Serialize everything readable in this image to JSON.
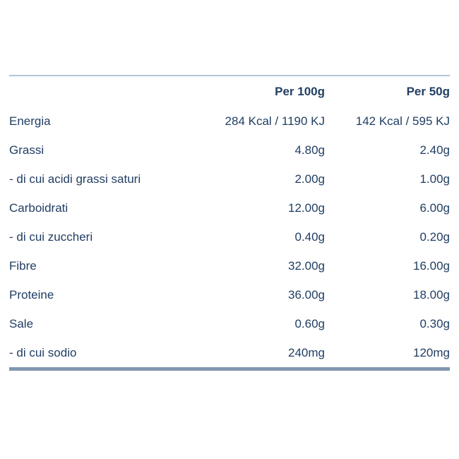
{
  "colors": {
    "background": "#ffffff",
    "text": "#213e63",
    "top_border": "#b3c5d7",
    "bottom_border": "#8197ae"
  },
  "table": {
    "header": {
      "col_100g": "Per 100g",
      "col_50g": "Per 50g"
    },
    "rows": [
      {
        "label": "Energia",
        "per_100g": "284 Kcal / 1190 KJ",
        "per_50g": "142 Kcal / 595 KJ"
      },
      {
        "label": "Grassi",
        "per_100g": "4.80g",
        "per_50g": "2.40g"
      },
      {
        "label": "- di cui acidi grassi saturi",
        "per_100g": "2.00g",
        "per_50g": "1.00g"
      },
      {
        "label": "Carboidrati",
        "per_100g": "12.00g",
        "per_50g": "6.00g"
      },
      {
        "label": "- di cui zuccheri",
        "per_100g": "0.40g",
        "per_50g": "0.20g"
      },
      {
        "label": "Fibre",
        "per_100g": "32.00g",
        "per_50g": "16.00g"
      },
      {
        "label": "Proteine",
        "per_100g": "36.00g",
        "per_50g": "18.00g"
      },
      {
        "label": "Sale",
        "per_100g": "0.60g",
        "per_50g": "0.30g"
      },
      {
        "label": "- di cui sodio",
        "per_100g": "240mg",
        "per_50g": "120mg"
      }
    ]
  }
}
